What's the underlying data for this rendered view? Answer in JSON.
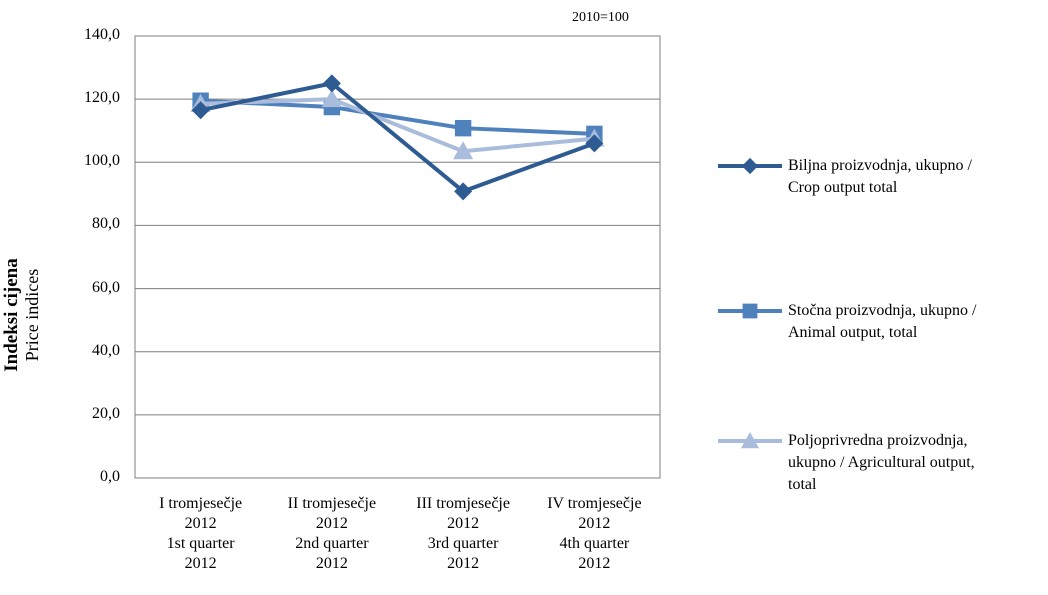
{
  "note": "2010=100",
  "y_axis": {
    "title_bold": "Indeksi cijena",
    "title_regular": "Price indices",
    "ticks": [
      "140,0",
      "120,0",
      "100,0",
      "80,0",
      "60,0",
      "40,0",
      "20,0",
      "0,0"
    ]
  },
  "x_axis": {
    "categories": [
      {
        "line1": "I tromjesečje",
        "line2": "2012",
        "line3": "1st quarter",
        "line4": "2012"
      },
      {
        "line1": "II tromjesečje",
        "line2": "2012",
        "line3": "2nd quarter",
        "line4": "2012"
      },
      {
        "line1": "III tromjesečje",
        "line2": "2012",
        "line3": "3rd quarter",
        "line4": "2012"
      },
      {
        "line1": "IV tromjesečje",
        "line2": "2012",
        "line3": "4th quarter",
        "line4": "2012"
      }
    ]
  },
  "legend": [
    {
      "line1": "Biljna proizvodnja, ukupno /",
      "line2": "Crop output total"
    },
    {
      "line1": "Stočna proizvodnja, ukupno /",
      "line2": "Animal output, total"
    },
    {
      "line1": "Poljoprivredna proizvodnja,",
      "line2": "ukupno / Agricultural output,",
      "line3": "total"
    }
  ],
  "chart_data": {
    "type": "line",
    "categories": [
      "I tromjesečje 2012 / 1st quarter 2012",
      "II tromjesečje 2012 / 2nd quarter 2012",
      "III tromjesečje 2012 / 3rd quarter 2012",
      "IV tromjesečje 2012 / 4th quarter 2012"
    ],
    "ylim": [
      0,
      140
    ],
    "ylabel": "Indeksi cijena Price indices",
    "grid": true,
    "legend_position": "right",
    "series": [
      {
        "name": "Biljna proizvodnja, ukupno / Crop output total",
        "values": [
          116.5,
          125.0,
          90.8,
          106.0
        ],
        "color": "#2e5b91",
        "marker": "diamond"
      },
      {
        "name": "Stočna proizvodnja, ukupno / Animal output, total",
        "values": [
          119.5,
          117.5,
          110.8,
          109.0
        ],
        "color": "#4f81bd",
        "marker": "square"
      },
      {
        "name": "Poljoprivredna proizvodnja, ukupno / Agricultural output, total",
        "values": [
          118.5,
          120.0,
          103.5,
          107.5
        ],
        "color": "#a9bcdc",
        "marker": "triangle"
      }
    ]
  }
}
